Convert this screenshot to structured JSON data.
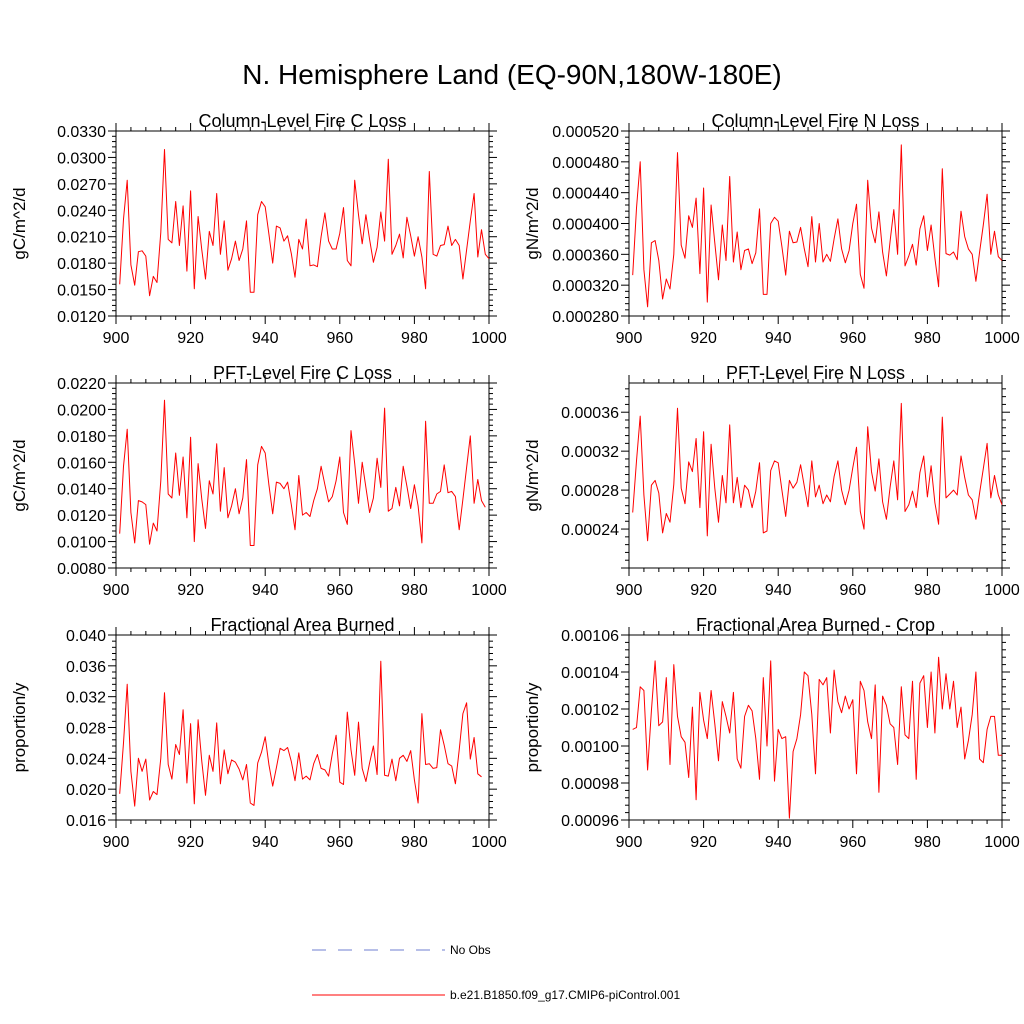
{
  "figure": {
    "title": "N. Hemisphere Land (EQ-90N,180W-180E)"
  },
  "legend": [
    {
      "label": "No Obs",
      "color": "#6f7fd0",
      "dash": true
    },
    {
      "label": "b.e21.B1850.f09_g17.CMIP6-piControl.001",
      "color": "#ff0000",
      "dash": false
    }
  ],
  "chart_data": [
    {
      "type": "line",
      "title": "Column-Level Fire C Loss",
      "xlabel": "",
      "ylabel": "gC/m^2/d",
      "xlim": [
        900,
        1000
      ],
      "ylim": [
        0.012,
        0.033
      ],
      "xticks": [
        900,
        920,
        940,
        960,
        980,
        1000
      ],
      "yticks": [
        0.012,
        0.015,
        0.018,
        0.021,
        0.024,
        0.027,
        0.03,
        0.033
      ],
      "ytick_labels": [
        "0.0120",
        "0.0150",
        "0.0180",
        "0.0210",
        "0.0240",
        "0.0270",
        "0.0300",
        "0.0330"
      ],
      "x_start": 901,
      "values": [
        0.0156,
        0.023,
        0.0274,
        0.0178,
        0.0155,
        0.0193,
        0.0194,
        0.0188,
        0.0143,
        0.0165,
        0.0158,
        0.0215,
        0.0309,
        0.0207,
        0.0203,
        0.025,
        0.02,
        0.0245,
        0.0171,
        0.0262,
        0.0151,
        0.0233,
        0.0195,
        0.0162,
        0.0216,
        0.02,
        0.0259,
        0.019,
        0.0228,
        0.0172,
        0.0185,
        0.0205,
        0.0183,
        0.0196,
        0.0228,
        0.0147,
        0.0147,
        0.0235,
        0.025,
        0.0244,
        0.0213,
        0.018,
        0.0222,
        0.022,
        0.0205,
        0.0211,
        0.0191,
        0.0164,
        0.0207,
        0.0196,
        0.023,
        0.0177,
        0.0178,
        0.0176,
        0.021,
        0.0237,
        0.0205,
        0.0196,
        0.0196,
        0.0214,
        0.0243,
        0.0183,
        0.0177,
        0.0274,
        0.0235,
        0.0202,
        0.0235,
        0.0207,
        0.0181,
        0.0198,
        0.0238,
        0.0205,
        0.0298,
        0.019,
        0.02,
        0.0213,
        0.0186,
        0.0232,
        0.0211,
        0.0188,
        0.021,
        0.0187,
        0.0151,
        0.0284,
        0.019,
        0.0188,
        0.02,
        0.0201,
        0.0222,
        0.02,
        0.0207,
        0.02,
        0.0162,
        0.0195,
        0.0228,
        0.0259,
        0.0187,
        0.0218,
        0.019,
        0.0185
      ]
    },
    {
      "type": "line",
      "title": "Column-Level Fire N Loss",
      "xlabel": "",
      "ylabel": "gN/m^2/d",
      "xlim": [
        900,
        1000
      ],
      "ylim": [
        0.00028,
        0.00052
      ],
      "xticks": [
        900,
        920,
        940,
        960,
        980,
        1000
      ],
      "yticks": [
        0.00028,
        0.00032,
        0.00036,
        0.0004,
        0.00044,
        0.00048,
        0.00052
      ],
      "ytick_labels": [
        "0.000280",
        "0.000320",
        "0.000360",
        "0.000400",
        "0.000440",
        "0.000480",
        "0.000520"
      ],
      "x_start": 901,
      "values": [
        0.000333,
        0.00042,
        0.00048,
        0.00034,
        0.000292,
        0.000375,
        0.000378,
        0.000352,
        0.000302,
        0.000328,
        0.000315,
        0.00036,
        0.000492,
        0.000372,
        0.000355,
        0.00041,
        0.000395,
        0.000433,
        0.000335,
        0.000446,
        0.000298,
        0.000424,
        0.000375,
        0.000327,
        0.000398,
        0.000352,
        0.000461,
        0.00035,
        0.000389,
        0.00034,
        0.000365,
        0.000367,
        0.000348,
        0.000362,
        0.000419,
        0.000308,
        0.000308,
        0.0004,
        0.000408,
        0.000403,
        0.00037,
        0.000333,
        0.00039,
        0.000375,
        0.000376,
        0.000395,
        0.000367,
        0.000344,
        0.000409,
        0.00035,
        0.0004,
        0.00035,
        0.00036,
        0.000351,
        0.00038,
        0.000406,
        0.000367,
        0.000349,
        0.000365,
        0.0004,
        0.000425,
        0.000334,
        0.000316,
        0.000456,
        0.000394,
        0.000375,
        0.000415,
        0.000363,
        0.000332,
        0.000377,
        0.000418,
        0.00036,
        0.000502,
        0.000345,
        0.000358,
        0.000373,
        0.000346,
        0.000393,
        0.00041,
        0.000365,
        0.000398,
        0.000355,
        0.000318,
        0.000471,
        0.000361,
        0.000359,
        0.000363,
        0.000353,
        0.000416,
        0.000383,
        0.000367,
        0.00036,
        0.000325,
        0.000363,
        0.000398,
        0.000438,
        0.00036,
        0.00039,
        0.000357,
        0.000352
      ]
    },
    {
      "type": "line",
      "title": "PFT-Level Fire C Loss",
      "xlabel": "",
      "ylabel": "gC/m^2/d",
      "xlim": [
        900,
        1000
      ],
      "ylim": [
        0.008,
        0.022
      ],
      "xticks": [
        900,
        920,
        940,
        960,
        980,
        1000
      ],
      "yticks": [
        0.008,
        0.01,
        0.012,
        0.014,
        0.016,
        0.018,
        0.02,
        0.022
      ],
      "ytick_labels": [
        "0.0080",
        "0.0100",
        "0.0120",
        "0.0140",
        "0.0160",
        "0.0180",
        "0.0200",
        "0.0220"
      ],
      "x_start": 901,
      "values": [
        0.0106,
        0.0157,
        0.0185,
        0.0122,
        0.0099,
        0.0131,
        0.013,
        0.0128,
        0.0098,
        0.0114,
        0.0108,
        0.0146,
        0.0207,
        0.0136,
        0.0133,
        0.0167,
        0.0135,
        0.0164,
        0.0118,
        0.0179,
        0.01,
        0.0159,
        0.0132,
        0.011,
        0.0146,
        0.0136,
        0.0174,
        0.0123,
        0.0156,
        0.0118,
        0.0127,
        0.014,
        0.0121,
        0.0133,
        0.0162,
        0.0097,
        0.0097,
        0.0158,
        0.0172,
        0.0167,
        0.0143,
        0.0121,
        0.0145,
        0.0144,
        0.014,
        0.0145,
        0.0128,
        0.0109,
        0.015,
        0.012,
        0.0122,
        0.0119,
        0.0131,
        0.014,
        0.0157,
        0.0143,
        0.013,
        0.0134,
        0.0146,
        0.0164,
        0.0122,
        0.0113,
        0.0184,
        0.0159,
        0.0129,
        0.016,
        0.0141,
        0.0122,
        0.0133,
        0.0163,
        0.0141,
        0.0201,
        0.0123,
        0.0125,
        0.0141,
        0.0127,
        0.0157,
        0.0142,
        0.0125,
        0.0143,
        0.0127,
        0.0099,
        0.0191,
        0.0129,
        0.0129,
        0.0136,
        0.0138,
        0.0158,
        0.0137,
        0.0138,
        0.0134,
        0.0109,
        0.0132,
        0.0156,
        0.018,
        0.0129,
        0.0147,
        0.0131,
        0.0126
      ]
    },
    {
      "type": "line",
      "title": "PFT-Level Fire N Loss",
      "xlabel": "",
      "ylabel": "gN/m^2/d",
      "xlim": [
        900,
        1000
      ],
      "ylim": [
        0.0002,
        0.00039
      ],
      "xticks": [
        900,
        920,
        940,
        960,
        980,
        1000
      ],
      "yticks": [
        0.00024,
        0.00028,
        0.00032,
        0.00036
      ],
      "ytick_labels": [
        "0.00024",
        "0.00028",
        "0.00032",
        "0.00036"
      ],
      "x_start": 901,
      "values": [
        0.000257,
        0.00031,
        0.000356,
        0.000275,
        0.000228,
        0.000285,
        0.00029,
        0.000277,
        0.000236,
        0.000256,
        0.000247,
        0.000286,
        0.000364,
        0.000282,
        0.000266,
        0.000309,
        0.000299,
        0.000333,
        0.000262,
        0.00034,
        0.000233,
        0.000327,
        0.000282,
        0.000247,
        0.000295,
        0.000267,
        0.000347,
        0.000267,
        0.000293,
        0.000262,
        0.000285,
        0.00028,
        0.000262,
        0.000279,
        0.000308,
        0.000236,
        0.000238,
        0.0003,
        0.00031,
        0.000308,
        0.00028,
        0.000253,
        0.00029,
        0.000282,
        0.000288,
        0.000306,
        0.000284,
        0.000263,
        0.00031,
        0.000273,
        0.000285,
        0.000266,
        0.000275,
        0.000268,
        0.000294,
        0.00031,
        0.00028,
        0.000265,
        0.00028,
        0.000303,
        0.000324,
        0.000258,
        0.00024,
        0.000345,
        0.000299,
        0.000279,
        0.000312,
        0.000268,
        0.00025,
        0.000283,
        0.00031,
        0.00027,
        0.000369,
        0.000258,
        0.000265,
        0.000279,
        0.000262,
        0.000298,
        0.000315,
        0.000273,
        0.000305,
        0.000267,
        0.000245,
        0.000355,
        0.000272,
        0.000276,
        0.00028,
        0.000275,
        0.000315,
        0.000293,
        0.000275,
        0.00027,
        0.00025,
        0.000277,
        0.000302,
        0.000328,
        0.000272,
        0.000295,
        0.000275,
        0.000265
      ]
    },
    {
      "type": "line",
      "title": "Fractional Area Burned",
      "xlabel": "",
      "ylabel": "proportion/y",
      "xlim": [
        900,
        1000
      ],
      "ylim": [
        0.016,
        0.04
      ],
      "xticks": [
        900,
        920,
        940,
        960,
        980,
        1000
      ],
      "yticks": [
        0.016,
        0.02,
        0.024,
        0.028,
        0.032,
        0.036,
        0.04
      ],
      "ytick_labels": [
        "0.016",
        "0.020",
        "0.024",
        "0.028",
        "0.032",
        "0.036",
        "0.040"
      ],
      "x_start": 901,
      "values": [
        0.0194,
        0.026,
        0.0336,
        0.0223,
        0.0178,
        0.024,
        0.0223,
        0.0239,
        0.0186,
        0.0197,
        0.0193,
        0.024,
        0.0325,
        0.0232,
        0.0213,
        0.0258,
        0.0245,
        0.0303,
        0.0208,
        0.0285,
        0.0181,
        0.029,
        0.0236,
        0.0192,
        0.0244,
        0.0223,
        0.0286,
        0.0207,
        0.0251,
        0.022,
        0.0238,
        0.0235,
        0.0226,
        0.0212,
        0.0232,
        0.0182,
        0.0179,
        0.0234,
        0.0248,
        0.0268,
        0.0232,
        0.0204,
        0.0228,
        0.0253,
        0.025,
        0.0254,
        0.0236,
        0.0211,
        0.0247,
        0.0213,
        0.0217,
        0.0212,
        0.0233,
        0.0245,
        0.0227,
        0.0225,
        0.0217,
        0.0246,
        0.027,
        0.0209,
        0.0206,
        0.03,
        0.0251,
        0.0218,
        0.0287,
        0.0227,
        0.021,
        0.0234,
        0.0256,
        0.0219,
        0.0366,
        0.0218,
        0.0217,
        0.0239,
        0.0211,
        0.024,
        0.0244,
        0.0236,
        0.025,
        0.0212,
        0.0182,
        0.0298,
        0.0232,
        0.0233,
        0.0227,
        0.0228,
        0.0277,
        0.0257,
        0.0233,
        0.023,
        0.0207,
        0.0251,
        0.0298,
        0.0312,
        0.0239,
        0.0267,
        0.022,
        0.0216
      ]
    },
    {
      "type": "line",
      "title": "Fractional Area Burned - Crop",
      "xlabel": "",
      "ylabel": "proportion/y",
      "xlim": [
        900,
        1000
      ],
      "ylim": [
        0.00096,
        0.00106
      ],
      "xticks": [
        900,
        920,
        940,
        960,
        980,
        1000
      ],
      "yticks": [
        0.00096,
        0.00098,
        0.001,
        0.00102,
        0.00104,
        0.00106
      ],
      "ytick_labels": [
        "0.00096",
        "0.00098",
        "0.00100",
        "0.00102",
        "0.00104",
        "0.00106"
      ],
      "x_start": 901,
      "values": [
        0.001009,
        0.00101,
        0.001032,
        0.00103,
        0.000987,
        0.001019,
        0.001046,
        0.001011,
        0.001013,
        0.001037,
        0.00099,
        0.001044,
        0.001016,
        0.001005,
        0.001002,
        0.000983,
        0.001021,
        0.000971,
        0.001029,
        0.001014,
        0.001004,
        0.00103,
        0.001012,
        0.000992,
        0.001024,
        0.001016,
        0.001007,
        0.001029,
        0.000993,
        0.000988,
        0.001016,
        0.001022,
        0.001019,
        0.001004,
        0.000982,
        0.001037,
        0.001,
        0.001046,
        0.000981,
        0.001009,
        0.001004,
        0.001005,
        0.000961,
        0.000997,
        0.001004,
        0.001017,
        0.00104,
        0.001038,
        0.001017,
        0.000985,
        0.001036,
        0.001033,
        0.001037,
        0.001007,
        0.001041,
        0.001024,
        0.001018,
        0.001027,
        0.00102,
        0.001025,
        0.000985,
        0.001035,
        0.00103,
        0.001013,
        0.001004,
        0.001033,
        0.000975,
        0.001027,
        0.001022,
        0.001012,
        0.00101,
        0.00099,
        0.001032,
        0.001006,
        0.001004,
        0.001035,
        0.000982,
        0.001034,
        0.001038,
        0.00101,
        0.00104,
        0.001007,
        0.001048,
        0.00102,
        0.001039,
        0.00102,
        0.001035,
        0.00101,
        0.001021,
        0.000993,
        0.001003,
        0.001017,
        0.00104,
        0.000993,
        0.000991,
        0.001009,
        0.001016,
        0.001016,
        0.000995,
        0.000995
      ]
    }
  ]
}
